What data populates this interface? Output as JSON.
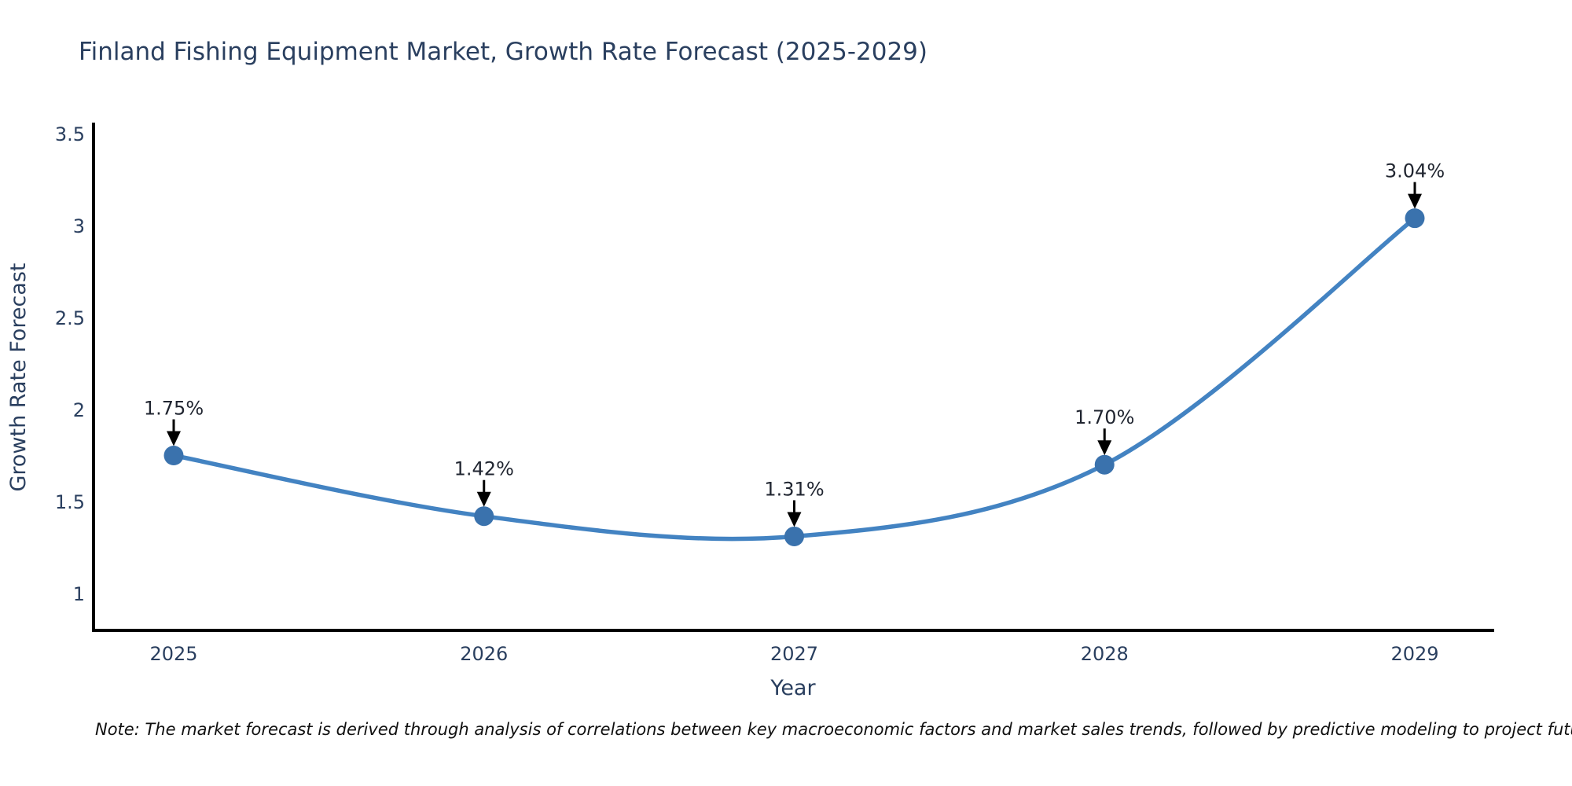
{
  "title": "Finland Fishing Equipment Market, Growth Rate Forecast (2025-2029)",
  "note": "Note: The market forecast is derived through analysis of correlations between key macroeconomic factors and market sales trends, followed by predictive modeling to project future sales",
  "chart_data": {
    "type": "line",
    "title": "Finland Fishing Equipment Market, Growth Rate Forecast (2025-2029)",
    "xlabel": "Year",
    "ylabel": "Growth Rate Forecast",
    "categories": [
      "2025",
      "2026",
      "2027",
      "2028",
      "2029"
    ],
    "series": [
      {
        "name": "Growth Rate Forecast",
        "values": [
          1.75,
          1.42,
          1.31,
          1.7,
          3.04
        ]
      }
    ],
    "point_labels": [
      "1.75%",
      "1.42%",
      "1.31%",
      "1.70%",
      "3.04%"
    ],
    "yticks": [
      1,
      1.5,
      2,
      2.5,
      3,
      3.5
    ],
    "ylim": [
      0.8,
      3.55
    ],
    "grid": false,
    "legend": false,
    "smooth": true,
    "colors": {
      "line": "#4383c2",
      "marker": "#3a72ad",
      "axis": "#000000",
      "tick_text": "#2a3f5f",
      "annotation_text": "#202530",
      "arrow": "#000000"
    }
  }
}
